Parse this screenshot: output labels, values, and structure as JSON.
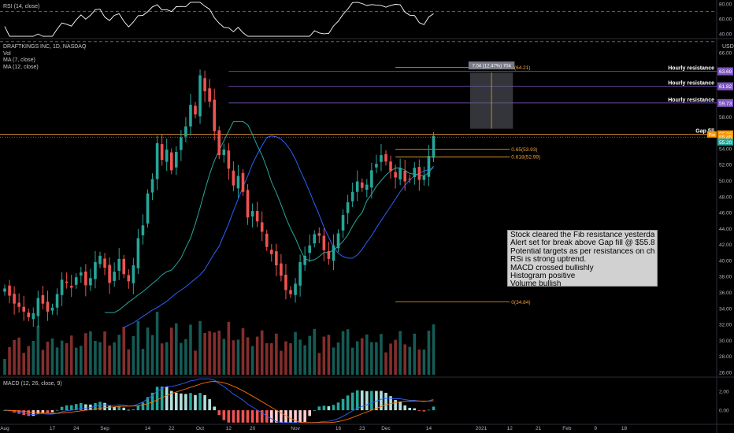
{
  "panes": {
    "rsi_title": "RSI (14, close)",
    "main_title": "DRAFTKINGS INC, 1D, NASDAQ",
    "indicators": [
      "Vol",
      "MA (7, close)",
      "MA (12, close)"
    ],
    "macd_title": "MACD (12, 26, close, 9)",
    "currency": "USD"
  },
  "note": {
    "lines": [
      "Stock cleared the Fib resistance yesterday ,",
      "Alert set for break above Gap fill @ $55.80",
      "Potential targets as per resistances on chart.",
      "RSi is strong uptrend.",
      "MACD crossed bullishly",
      "Histogram positive",
      "Volume bullish"
    ]
  },
  "colors": {
    "bull": "#26a69a",
    "bear": "#ef5350",
    "ma7": "#26a69a",
    "ma12": "#2962ff",
    "resistance": "#7e57c2",
    "fib": "#f2a33a",
    "current_price": "#ff9800",
    "rsi_line": "#ffffff",
    "measure_box": "#5d606b"
  },
  "chart_data": {
    "type": "candlestick",
    "price_axis": {
      "range": [
        25.5,
        67.5
      ],
      "ticks": [
        "66.00",
        "64.00",
        "62.00",
        "60.00",
        "58.00",
        "56.00",
        "54.00",
        "52.00",
        "50.00",
        "48.00",
        "46.00",
        "44.00",
        "42.00",
        "40.00",
        "38.00",
        "36.00",
        "34.00",
        "32.00",
        "30.00",
        "28.00",
        "26.00"
      ]
    },
    "rsi_axis": {
      "range": [
        35,
        85
      ],
      "ticks": [
        "80.00",
        "60.00",
        "40.00"
      ],
      "bands": [
        70,
        30
      ]
    },
    "macd_axis": {
      "range": [
        -1.4,
        3.4
      ],
      "ticks": [
        "2.00",
        "0.00"
      ]
    },
    "x_ticks": [
      {
        "label": "Aug",
        "i": 0
      },
      {
        "label": "17",
        "i": 10
      },
      {
        "label": "24",
        "i": 15
      },
      {
        "label": "Sep",
        "i": 21
      },
      {
        "label": "14",
        "i": 30
      },
      {
        "label": "22",
        "i": 35
      },
      {
        "label": "Oct",
        "i": 41
      },
      {
        "label": "12",
        "i": 47
      },
      {
        "label": "20",
        "i": 52
      },
      {
        "label": "Nov",
        "i": 61
      },
      {
        "label": "16",
        "i": 70
      },
      {
        "label": "23",
        "i": 75
      },
      {
        "label": "Dec",
        "i": 80
      },
      {
        "label": "14",
        "i": 89
      },
      {
        "label": "2021",
        "i": 100
      },
      {
        "label": "12",
        "i": 106
      },
      {
        "label": "21",
        "i": 112
      },
      {
        "label": "Feb",
        "i": 118
      },
      {
        "label": "9",
        "i": 124
      },
      {
        "label": "18",
        "i": 130
      }
    ],
    "closes": [
      36.5,
      35.6,
      34.6,
      34.2,
      33.6,
      32.9,
      33.4,
      35.3,
      34.6,
      33.6,
      34.1,
      35.8,
      37.6,
      37.2,
      36.6,
      37.9,
      38.5,
      36.9,
      37.8,
      39.8,
      40.6,
      39.1,
      37.2,
      38.6,
      40.2,
      38.3,
      37.4,
      39.4,
      42.8,
      44.4,
      48.4,
      50.2,
      54.7,
      52.6,
      53.9,
      51.3,
      53.6,
      55.4,
      56.8,
      59.5,
      58.3,
      63.2,
      61.2,
      59.9,
      56.2,
      53.2,
      53.9,
      51.5,
      49.4,
      50.6,
      48.6,
      45.4,
      46.2,
      44.9,
      43.6,
      41.7,
      40.8,
      39.4,
      38.1,
      36.3,
      35.8,
      37.1,
      39.8,
      40.6,
      41.9,
      43.3,
      43.1,
      41.3,
      40.2,
      41.9,
      43.4,
      45.7,
      47.3,
      48.6,
      49.9,
      49.1,
      49.5,
      51.3,
      52.1,
      53.2,
      52.4,
      51.2,
      50.4,
      51.6,
      49.9,
      50.2,
      51.6,
      50.1,
      50.6,
      53.1,
      55.6
    ],
    "ma7": [
      33.5,
      33.5,
      33.5,
      33.8,
      34.3,
      34.8,
      35.2,
      35.7,
      36.1,
      36.6,
      37.1,
      37.6,
      38.2,
      38.6,
      38.8,
      39.5,
      40.3,
      41.6,
      42.8,
      44.6,
      46.6,
      48.8,
      50.8,
      52.5,
      53.8,
      55.0,
      56.2,
      57.4,
      57.4,
      57.4,
      57.0,
      55.8,
      54.4,
      53.2,
      51.6,
      49.8,
      48.5,
      47.0,
      45.4,
      44.0,
      42.8,
      41.4,
      40.2,
      40.0,
      40.1,
      40.5,
      41.0,
      41.0,
      41.3,
      41.8,
      42.4,
      43.2,
      44.3,
      45.3,
      46.0,
      47.5,
      48.3,
      49.3,
      50.0,
      50.7,
      51.2,
      51.6,
      51.6,
      51.3,
      50.9,
      50.8,
      50.7,
      50.6,
      51.0,
      51.8
    ],
    "ma7_start": 21,
    "ma12": [
      31.6,
      31.9,
      32.2,
      32.6,
      33.0,
      33.4,
      33.8,
      34.1,
      34.5,
      34.9,
      35.4,
      35.9,
      36.3,
      36.7,
      37.2,
      37.7,
      38.2,
      38.9,
      39.9,
      40.9,
      41.8,
      43.2,
      44.6,
      46.2,
      47.7,
      49.2,
      50.6,
      52.1,
      53.3,
      54.4,
      55.4,
      55.6,
      55.5,
      55.2,
      54.6,
      53.8,
      52.7,
      51.3,
      50.0,
      48.6,
      47.1,
      45.7,
      44.2,
      42.9,
      41.7,
      40.9,
      40.5,
      40.3,
      40.3,
      40.7,
      41.4,
      42.3,
      43.1,
      44.1,
      45.0,
      45.9,
      46.8,
      47.7,
      48.6,
      49.4,
      50.1,
      50.6,
      51.0,
      51.2,
      51.4,
      51.6
    ],
    "ma12_start": 25,
    "resistances": [
      {
        "label": "Hourly resistance",
        "price": 63.69,
        "tag": "63.69"
      },
      {
        "label": "Hourly resistance",
        "price": 61.82,
        "tag": "61.82"
      },
      {
        "label": "Hourly resistance",
        "price": 59.73,
        "tag": "59.73"
      },
      {
        "label": "Gap fill",
        "price": 55.8,
        "tag": "55.80"
      }
    ],
    "fib_levels": [
      {
        "label": "1(64.21)",
        "price": 64.21
      },
      {
        "label": "0.65(53.93)",
        "price": 53.93
      },
      {
        "label": "0.618(52.99)",
        "price": 52.99
      },
      {
        "label": "0(34.84)",
        "price": 34.84
      }
    ],
    "measure": {
      "label": "7.04 (12.47%) 704",
      "from": 56.5,
      "to": 63.54
    },
    "current_price": {
      "value": "55.45",
      "pre_tag": "Pre",
      "pre_value": "55.20"
    }
  }
}
